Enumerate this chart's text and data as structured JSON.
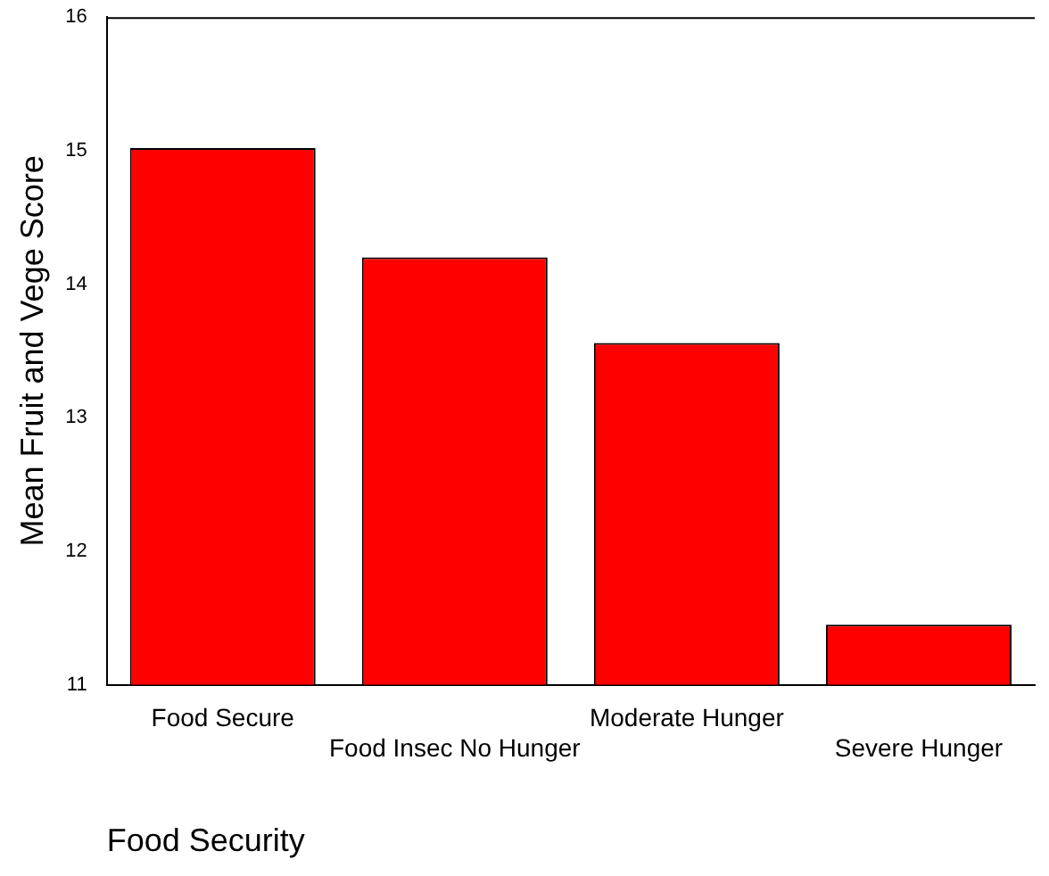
{
  "chart_data": {
    "type": "bar",
    "xlabel": "Food Security",
    "ylabel": "Mean Fruit and Vege Score",
    "categories": [
      "Food Secure",
      "Food Insec No Hunger",
      "Moderate Hunger",
      "Severe Hunger"
    ],
    "values": [
      15.02,
      14.2,
      13.56,
      11.45
    ],
    "color": "#ff0000",
    "ylim": [
      11,
      16
    ],
    "yticks": [
      11,
      12,
      13,
      14,
      15,
      16
    ],
    "grid": false,
    "legend": false
  }
}
